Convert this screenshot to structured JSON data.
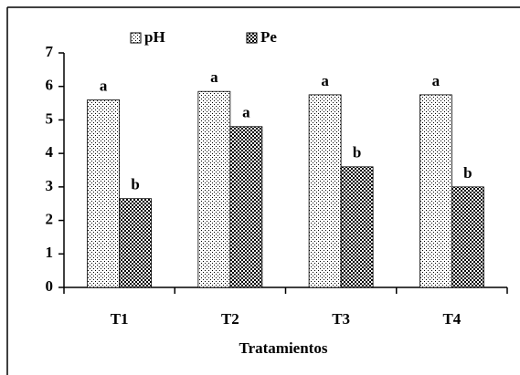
{
  "chart_data": {
    "type": "bar",
    "x_label": "Tratamientos",
    "categories": [
      "T1",
      "T2",
      "T3",
      "T4"
    ],
    "series": [
      {
        "name": "pH",
        "color": "#000000",
        "pattern": "dots",
        "values": [
          5.6,
          5.85,
          5.75,
          5.75
        ],
        "letters": [
          "a",
          "a",
          "a",
          "a"
        ]
      },
      {
        "name": "Pe",
        "color": "#000000",
        "pattern": "checker",
        "values": [
          2.65,
          4.8,
          3.6,
          3.0
        ],
        "letters": [
          "b",
          "a",
          "b",
          "b"
        ]
      }
    ],
    "ylim": [
      0,
      7
    ],
    "yticks": [
      0,
      1,
      2,
      3,
      4,
      5,
      6,
      7
    ],
    "grid": false,
    "legend": "top"
  }
}
